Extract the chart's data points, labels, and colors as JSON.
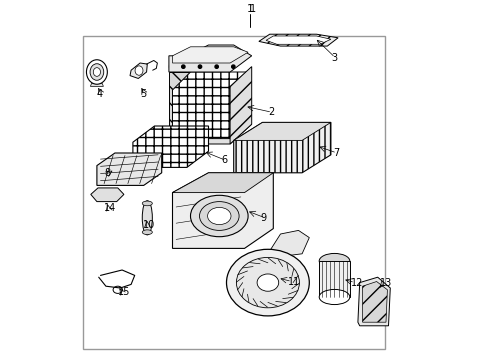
{
  "bg_color": "#ffffff",
  "line_color": "#000000",
  "fig_width": 4.89,
  "fig_height": 3.6,
  "dpi": 100,
  "border_color": "#888888"
}
